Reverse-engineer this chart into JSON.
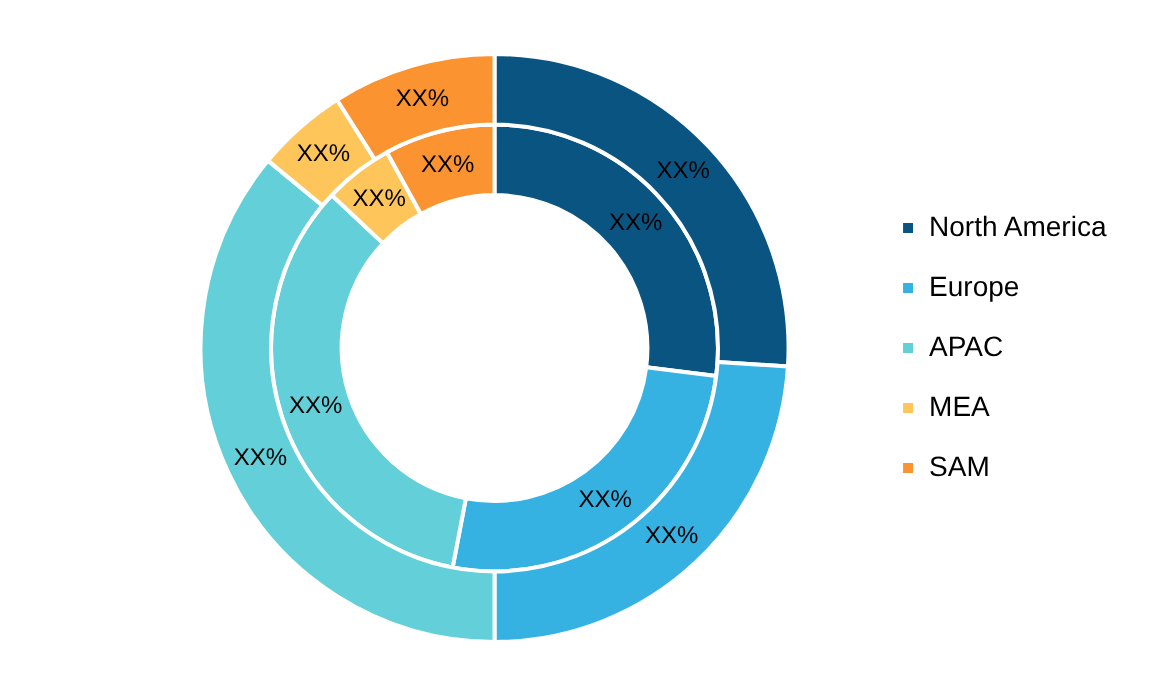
{
  "chart_data": {
    "type": "donut",
    "categories": [
      "North America",
      "Europe",
      "APAC",
      "MEA",
      "SAM"
    ],
    "colors": [
      "#0a5482",
      "#36b2e2",
      "#63cfd8",
      "#fec55a",
      "#fb9330"
    ],
    "series": [
      {
        "values": [
          26,
          24,
          36,
          5,
          9
        ],
        "value_labels": [
          "XX%",
          "XX%",
          "XX%",
          "XX%",
          "XX%"
        ]
      },
      {
        "values": [
          27,
          26,
          34,
          5,
          8
        ],
        "value_labels": [
          "XX%",
          "XX%",
          "XX%",
          "XX%",
          "XX%"
        ]
      }
    ],
    "legend": "right"
  }
}
